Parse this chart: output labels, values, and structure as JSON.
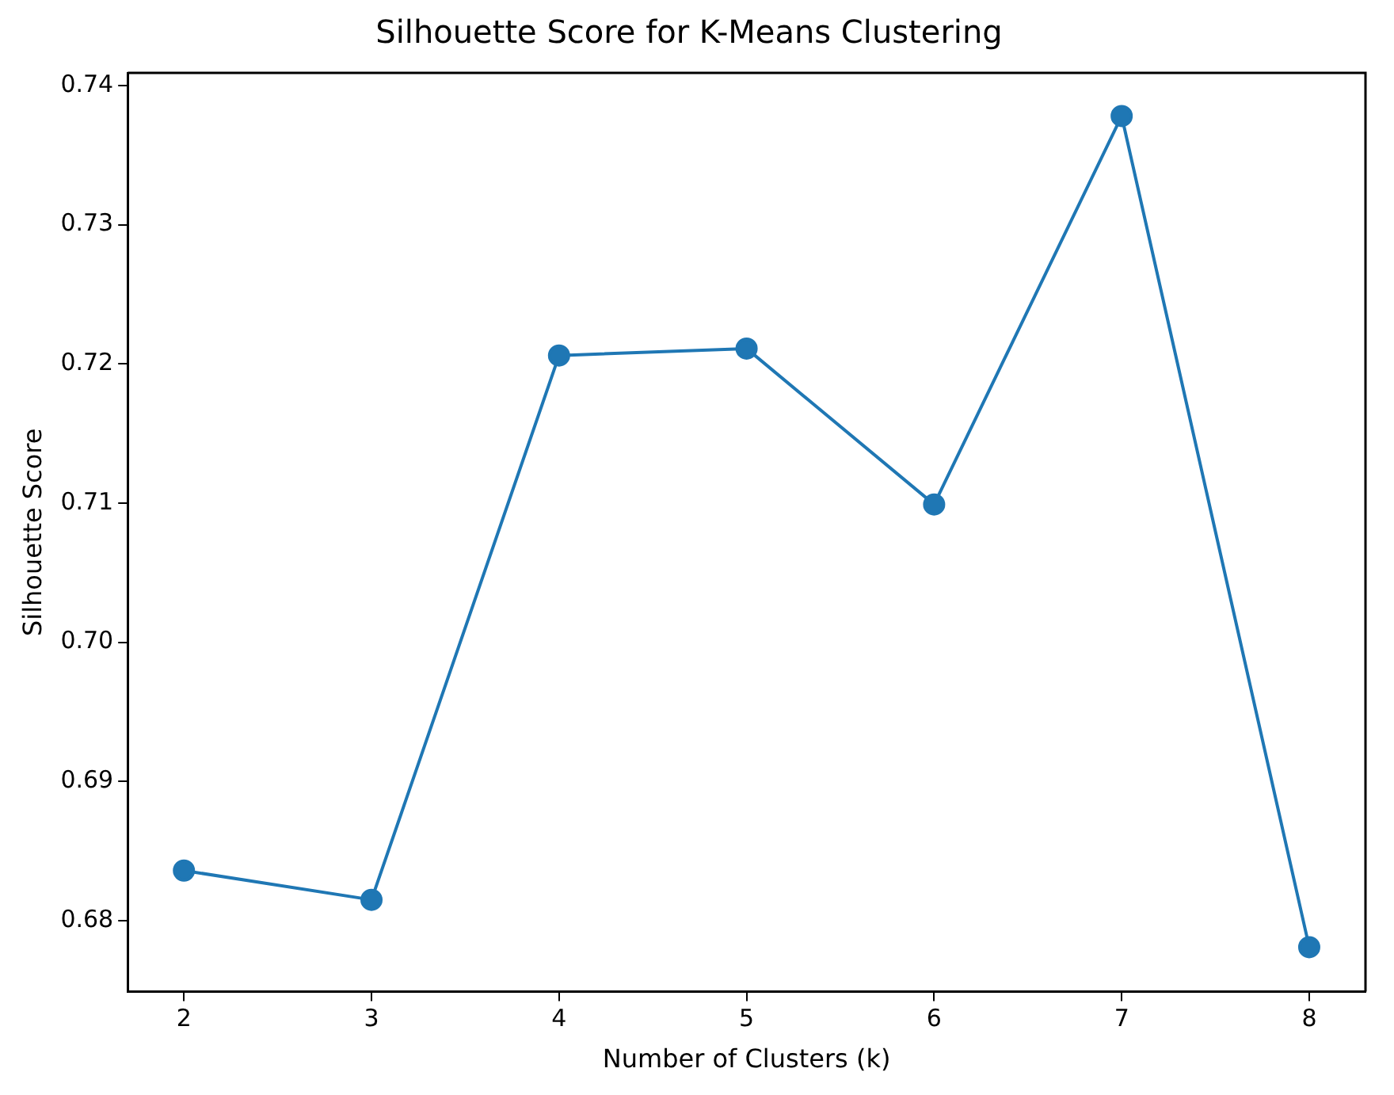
{
  "chart_data": {
    "type": "line",
    "title": "Silhouette Score for K-Means Clustering",
    "xlabel": "Number of Clusters (k)",
    "ylabel": "Silhouette Score",
    "x": [
      2,
      3,
      4,
      5,
      6,
      7,
      8
    ],
    "series": [
      {
        "color": "#1f77b4",
        "values": [
          0.6836,
          0.6815,
          0.7206,
          0.7211,
          0.7099,
          0.7378,
          0.6781
        ]
      }
    ],
    "xlim": [
      1.7,
      8.3
    ],
    "xticks": [
      2,
      3,
      4,
      5,
      6,
      7,
      8
    ],
    "ylim": [
      0.6749,
      0.7409
    ],
    "yticks": [
      0.68,
      0.69,
      {
        "value": 0.7,
        "label": "0.70"
      },
      0.71,
      0.72,
      0.73,
      0.74
    ],
    "marker": "circle",
    "line_style": "solid",
    "grid": false,
    "legend": false
  }
}
